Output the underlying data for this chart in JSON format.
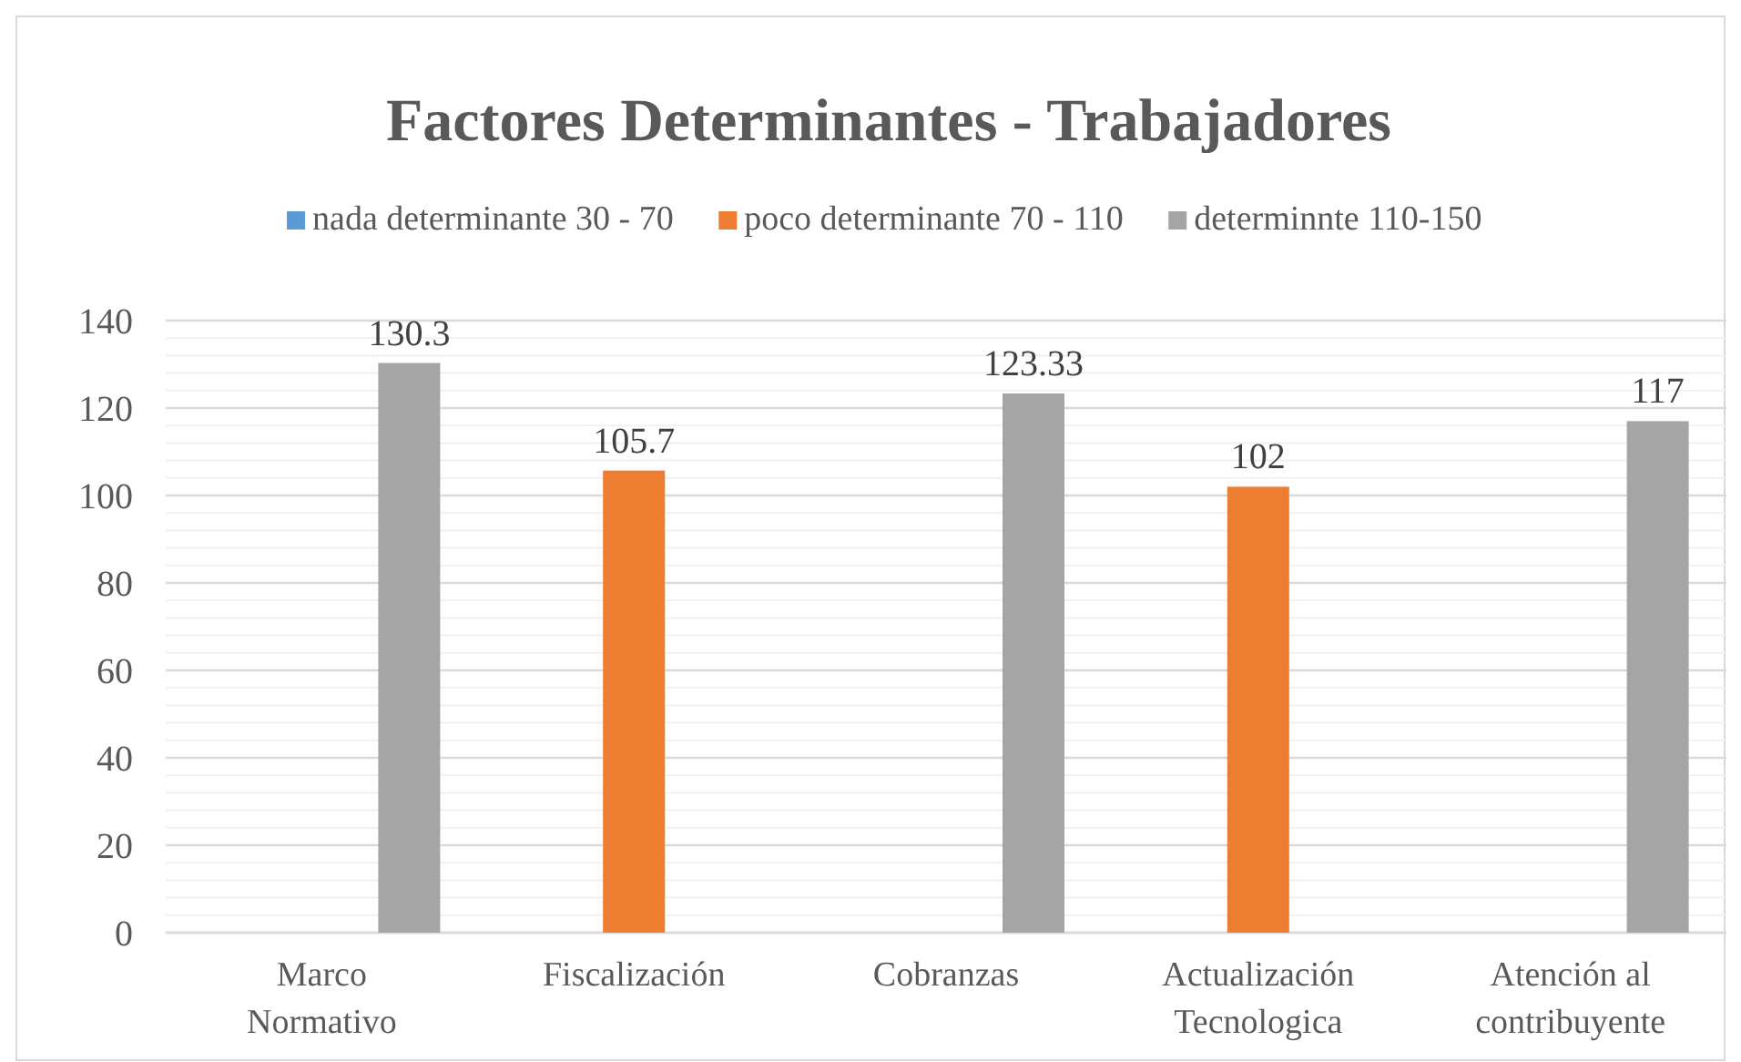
{
  "chart_data": {
    "type": "bar",
    "title": "Factores Determinantes - Trabajadores",
    "categories": [
      "Marco Normativo",
      "Fiscalización",
      "Cobranzas",
      "Actualización Tecnologica",
      "Atención al contribuyente"
    ],
    "series": [
      {
        "name": "nada determinante  30 - 70",
        "color": "#5b9bd5",
        "values": [
          null,
          null,
          null,
          null,
          null
        ]
      },
      {
        "name": "poco determinante  70 - 110",
        "color": "#ed7d31",
        "values": [
          null,
          105.7,
          null,
          102,
          null
        ]
      },
      {
        "name": "determinnte  110-150",
        "color": "#a5a5a5",
        "values": [
          130.3,
          null,
          123.33,
          null,
          117
        ]
      }
    ],
    "ylim": [
      0,
      140
    ],
    "yticks": [
      0,
      {
        "value": 4,
        "label": null
      },
      {
        "value": 8,
        "label": null
      },
      {
        "value": 12,
        "label": null
      },
      {
        "value": 16,
        "label": null
      },
      20,
      {
        "value": 24,
        "label": null
      },
      {
        "value": 28,
        "label": null
      },
      {
        "value": 32,
        "label": null
      },
      {
        "value": 36,
        "label": null
      },
      40,
      {
        "value": 44,
        "label": null
      },
      {
        "value": 48,
        "label": null
      },
      {
        "value": 52,
        "label": null
      },
      {
        "value": 56,
        "label": null
      },
      60,
      {
        "value": 64,
        "label": null
      },
      {
        "value": 68,
        "label": null
      },
      {
        "value": 72,
        "label": null
      },
      {
        "value": 76,
        "label": null
      },
      80,
      {
        "value": 84,
        "label": null
      },
      {
        "value": 88,
        "label": null
      },
      {
        "value": 92,
        "label": null
      },
      {
        "value": 96,
        "label": null
      },
      100,
      {
        "value": 104,
        "label": null
      },
      {
        "value": 108,
        "label": null
      },
      {
        "value": 112,
        "label": null
      },
      {
        "value": 116,
        "label": null
      },
      120,
      {
        "value": 124,
        "label": null
      },
      {
        "value": 128,
        "label": null
      },
      {
        "value": 132,
        "label": null
      },
      {
        "value": 136,
        "label": null
      },
      140
    ],
    "grid": "y",
    "legend": "top",
    "data_labels": true
  }
}
